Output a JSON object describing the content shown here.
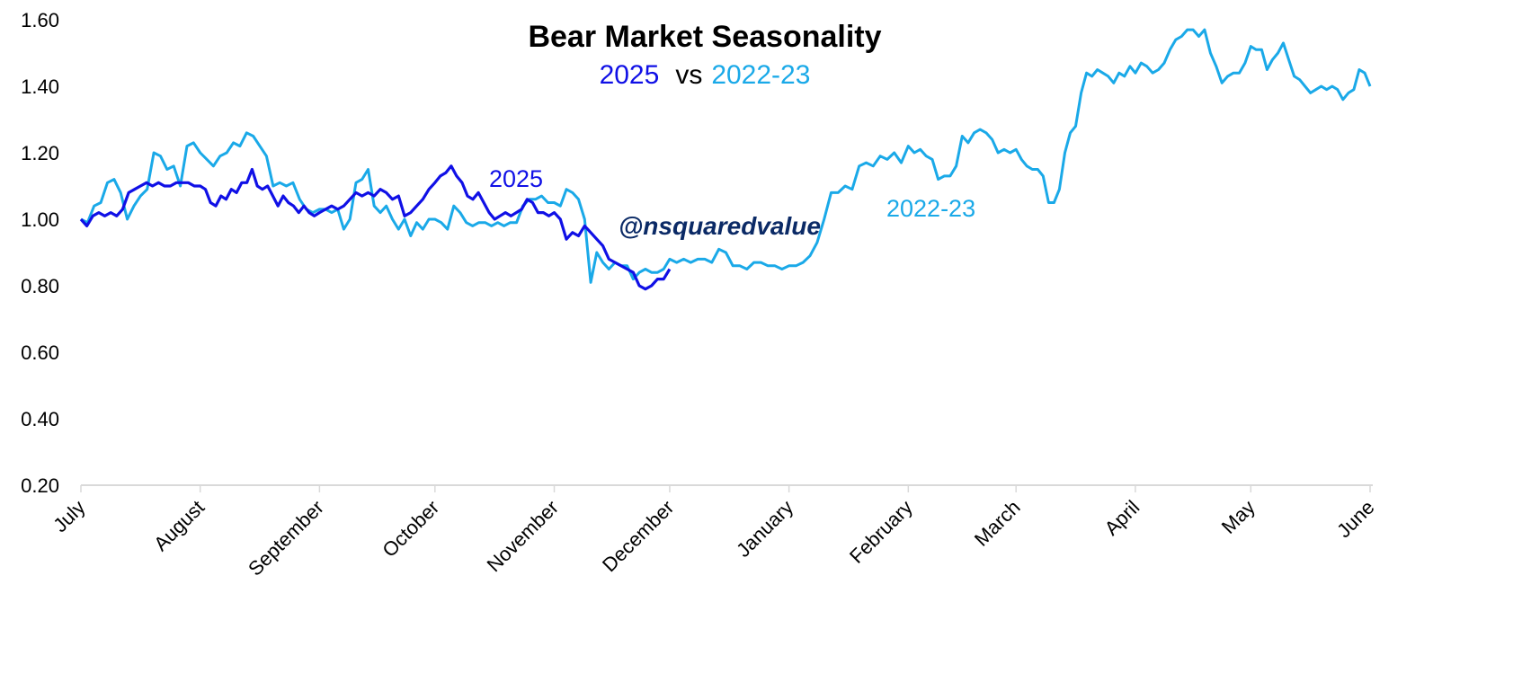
{
  "chart_data": {
    "type": "line",
    "title": "Bear Market Seasonality",
    "subtitle": {
      "a": "2025",
      "vs": "vs",
      "b": "2022-23"
    },
    "watermark": "@nsquaredvalue",
    "ylim": [
      0.2,
      1.6
    ],
    "yticks": [
      "0.20",
      "0.40",
      "0.60",
      "0.80",
      "1.00",
      "1.20",
      "1.40",
      "1.60"
    ],
    "categories": [
      "July",
      "August",
      "September",
      "October",
      "November",
      "December",
      "January",
      "February",
      "March",
      "April",
      "May",
      "June"
    ],
    "grid": false,
    "colors": {
      "2025": "#1010e6",
      "2022-23": "#1aa9e8",
      "watermark": "#0b2a66",
      "axis": "#d9d9d9"
    },
    "series": [
      {
        "name": "2022-23",
        "label": "2022-23",
        "values_by_month": {
          "July": [
            1.0,
            0.99,
            1.04,
            1.05,
            1.11,
            1.12,
            1.08,
            1.0,
            1.04,
            1.07,
            1.09,
            1.2,
            1.19,
            1.15,
            1.16,
            1.1,
            1.22,
            1.23
          ],
          "August": [
            1.2,
            1.18,
            1.16,
            1.19,
            1.2,
            1.23,
            1.22,
            1.26,
            1.25,
            1.22,
            1.19,
            1.1,
            1.11,
            1.1,
            1.11,
            1.06,
            1.03,
            1.02
          ],
          "September": [
            1.03,
            1.03,
            1.02,
            1.03,
            0.97,
            1.0,
            1.11,
            1.12,
            1.15,
            1.04,
            1.02,
            1.04,
            1.0,
            0.97,
            1.0,
            0.95,
            0.99,
            0.97,
            1.0
          ],
          "October": [
            1.0,
            0.99,
            0.97,
            1.04,
            1.02,
            0.99,
            0.98,
            0.99,
            0.99,
            0.98,
            0.99,
            0.98,
            0.99,
            0.99,
            1.04,
            1.06,
            1.06,
            1.07,
            1.05
          ],
          "November": [
            1.05,
            1.04,
            1.09,
            1.08,
            1.06,
            1.0,
            0.81,
            0.9,
            0.87,
            0.85,
            0.87,
            0.86,
            0.86,
            0.82,
            0.84,
            0.85,
            0.84,
            0.84,
            0.85
          ],
          "December": [
            0.88,
            0.87,
            0.88,
            0.87,
            0.88,
            0.88,
            0.87,
            0.91,
            0.9,
            0.86,
            0.86,
            0.85,
            0.87,
            0.87,
            0.86,
            0.86,
            0.85
          ],
          "January": [
            0.86,
            0.86,
            0.87,
            0.89,
            0.93,
            1.0,
            1.08,
            1.08,
            1.1,
            1.09,
            1.16,
            1.17,
            1.16,
            1.19,
            1.18,
            1.2,
            1.17
          ],
          "February": [
            1.22,
            1.2,
            1.21,
            1.19,
            1.18,
            1.12,
            1.13,
            1.13,
            1.16,
            1.25,
            1.23,
            1.26,
            1.27,
            1.26,
            1.24,
            1.2,
            1.21,
            1.2
          ],
          "March": [
            1.21,
            1.18,
            1.16,
            1.15,
            1.15,
            1.13,
            1.05,
            1.05,
            1.09,
            1.2,
            1.26,
            1.28,
            1.38,
            1.44,
            1.43,
            1.45,
            1.44,
            1.43,
            1.41,
            1.44,
            1.43,
            1.46
          ],
          "April": [
            1.44,
            1.47,
            1.46,
            1.44,
            1.45,
            1.47,
            1.51,
            1.54,
            1.55,
            1.57,
            1.57,
            1.55,
            1.57,
            1.5,
            1.46,
            1.41,
            1.43,
            1.44,
            1.44,
            1.47
          ],
          "May": [
            1.52,
            1.51,
            1.51,
            1.45,
            1.48,
            1.5,
            1.53,
            1.48,
            1.43,
            1.42,
            1.4,
            1.38,
            1.39,
            1.4,
            1.39,
            1.4,
            1.39,
            1.36,
            1.38,
            1.39,
            1.45,
            1.44
          ],
          "June": [
            1.4
          ]
        }
      },
      {
        "name": "2025",
        "label": "2025",
        "values_by_month": {
          "July": [
            1.0,
            0.98,
            1.01,
            1.02,
            1.01,
            1.02,
            1.01,
            1.03,
            1.08,
            1.09,
            1.1,
            1.11,
            1.1,
            1.11,
            1.1,
            1.1,
            1.11,
            1.11,
            1.11,
            1.1
          ],
          "August": [
            1.1,
            1.09,
            1.05,
            1.04,
            1.07,
            1.06,
            1.09,
            1.08,
            1.11,
            1.11,
            1.15,
            1.1,
            1.09,
            1.1,
            1.07,
            1.04,
            1.07,
            1.05,
            1.04,
            1.02,
            1.04,
            1.02,
            1.01
          ],
          "September": [
            1.02,
            1.03,
            1.04,
            1.03,
            1.04,
            1.06,
            1.08,
            1.07,
            1.08,
            1.07,
            1.09,
            1.08,
            1.06,
            1.07,
            1.01,
            1.02,
            1.04,
            1.06,
            1.09
          ],
          "October": [
            1.11,
            1.13,
            1.14,
            1.16,
            1.13,
            1.11,
            1.07,
            1.06,
            1.08,
            1.05,
            1.02,
            1.0,
            1.01,
            1.02,
            1.01,
            1.02,
            1.03,
            1.06,
            1.05,
            1.02,
            1.02,
            1.01
          ],
          "November": [
            1.02,
            1.0,
            0.94,
            0.96,
            0.95,
            0.98,
            0.96,
            0.94,
            0.92,
            0.88,
            0.87,
            0.86,
            0.85,
            0.84,
            0.8,
            0.79,
            0.8,
            0.82,
            0.82
          ],
          "December": [
            0.85
          ]
        }
      }
    ]
  }
}
